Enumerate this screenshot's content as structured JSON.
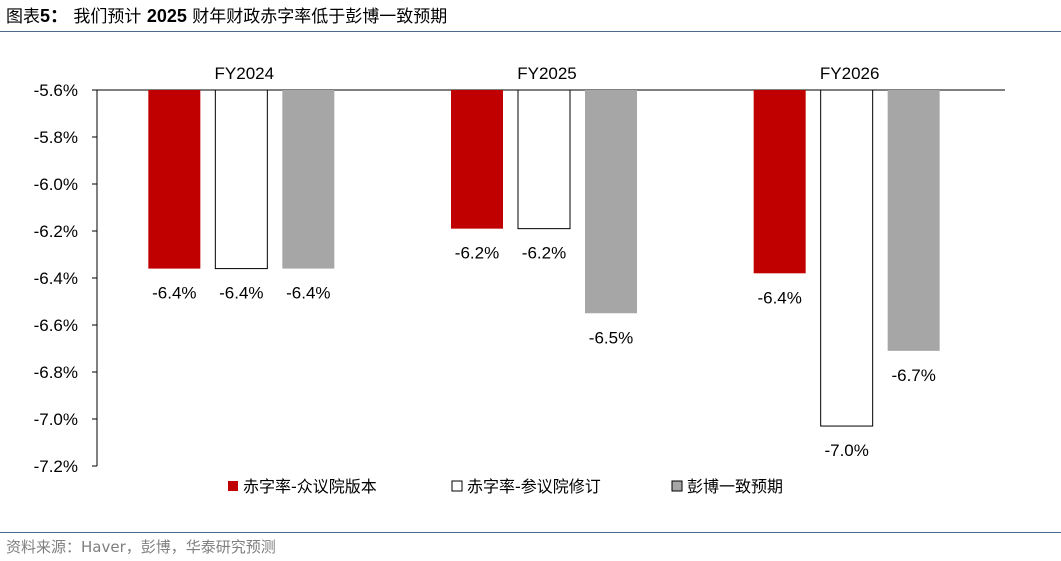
{
  "figure": {
    "label": "图表",
    "number": "5：",
    "title_pre": "我们预计",
    "title_year": "2025",
    "title_post": "财年财政赤字率低于彭博一致预期"
  },
  "source": "资料来源：Haver，彭博，华泰研究预测",
  "colors": {
    "house": "#c00000",
    "senate": "#ffffff",
    "consensus": "#a6a6a6",
    "outline": "#000000",
    "rule": "#4a6b8a"
  },
  "chart_data": {
    "type": "bar",
    "categories": [
      "FY2024",
      "FY2025",
      "FY2026"
    ],
    "ylim": [
      -7.2,
      -5.6
    ],
    "yticks": [
      "-5.6%",
      "-5.8%",
      "-6.0%",
      "-6.2%",
      "-6.4%",
      "-6.6%",
      "-6.8%",
      "-7.0%",
      "-7.2%"
    ],
    "ytick_values": [
      -5.6,
      -5.8,
      -6.0,
      -6.2,
      -6.4,
      -6.6,
      -6.8,
      -7.0,
      -7.2
    ],
    "axis_position": "top",
    "grid": false,
    "legend_position": "bottom",
    "series": [
      {
        "name": "赤字率-众议院版本",
        "values": [
          -6.36,
          -6.19,
          -6.38
        ],
        "labels": [
          "-6.4%",
          "-6.2%",
          "-6.4%"
        ]
      },
      {
        "name": "赤字率-参议院修订",
        "values": [
          -6.36,
          -6.19,
          -7.03
        ],
        "labels": [
          "-6.4%",
          "-6.2%",
          "-7.0%"
        ]
      },
      {
        "name": "彭博一致预期",
        "values": [
          -6.36,
          -6.55,
          -6.71
        ],
        "labels": [
          "-6.4%",
          "-6.5%",
          "-6.7%"
        ]
      }
    ]
  }
}
